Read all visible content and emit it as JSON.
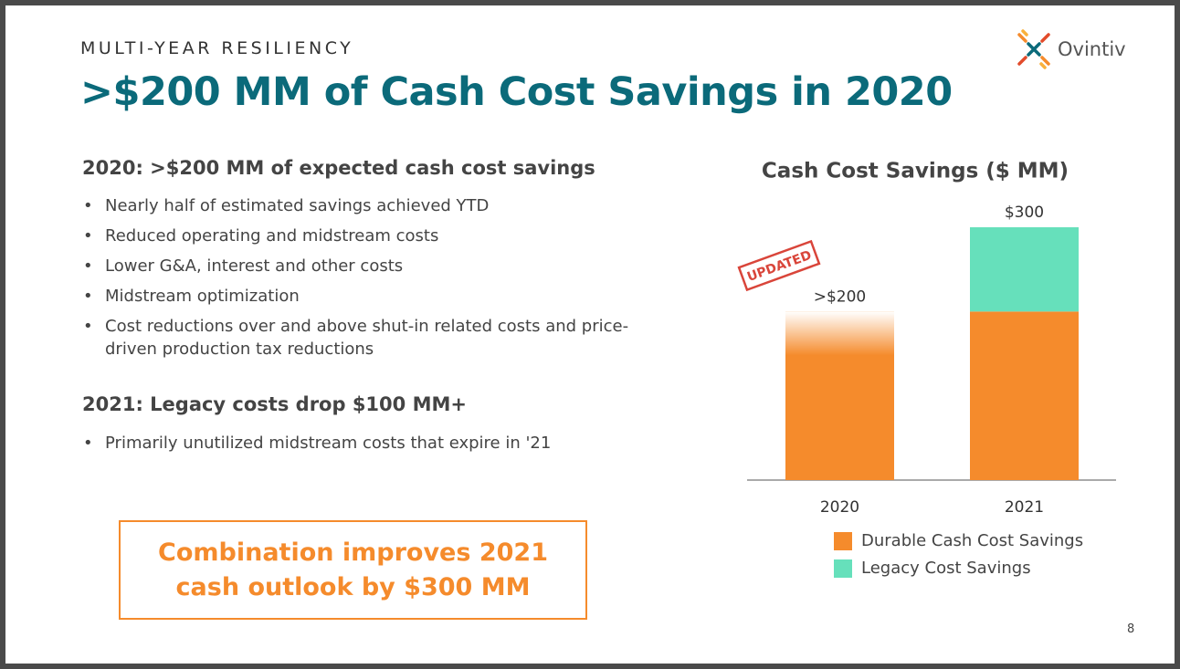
{
  "header": {
    "kicker": "MULTI-YEAR RESILIENCY",
    "title": ">$200 MM of Cash Cost Savings in 2020",
    "logo": "Ovintiv"
  },
  "sections": [
    {
      "heading": "2020: >$200 MM of expected cash cost savings",
      "bullets": [
        "Nearly half of estimated savings achieved YTD",
        "Reduced operating and midstream costs",
        "Lower G&A, interest and other costs",
        "Midstream optimization",
        "Cost reductions over and above shut-in related costs and price-driven production tax reductions"
      ]
    },
    {
      "heading": "2021: Legacy costs drop $100 MM+",
      "bullets": [
        "Primarily unutilized midstream costs that expire in '21"
      ]
    }
  ],
  "callout": "Combination improves 2021 cash outlook by $300 MM",
  "page_number": "8",
  "chart_data": {
    "type": "stacked_bar",
    "title": "Cash Cost Savings ($ MM)",
    "categories": [
      "2020",
      "2021"
    ],
    "series": [
      {
        "name": "Durable Cash Cost Savings",
        "color": "#f58b2c",
        "values": [
          200,
          200
        ]
      },
      {
        "name": "Legacy Cost Savings",
        "color": "#66e0bb",
        "values": [
          null,
          100
        ]
      }
    ],
    "total_labels": [
      ">$200",
      "$300"
    ],
    "annotation": "UPDATED"
  }
}
